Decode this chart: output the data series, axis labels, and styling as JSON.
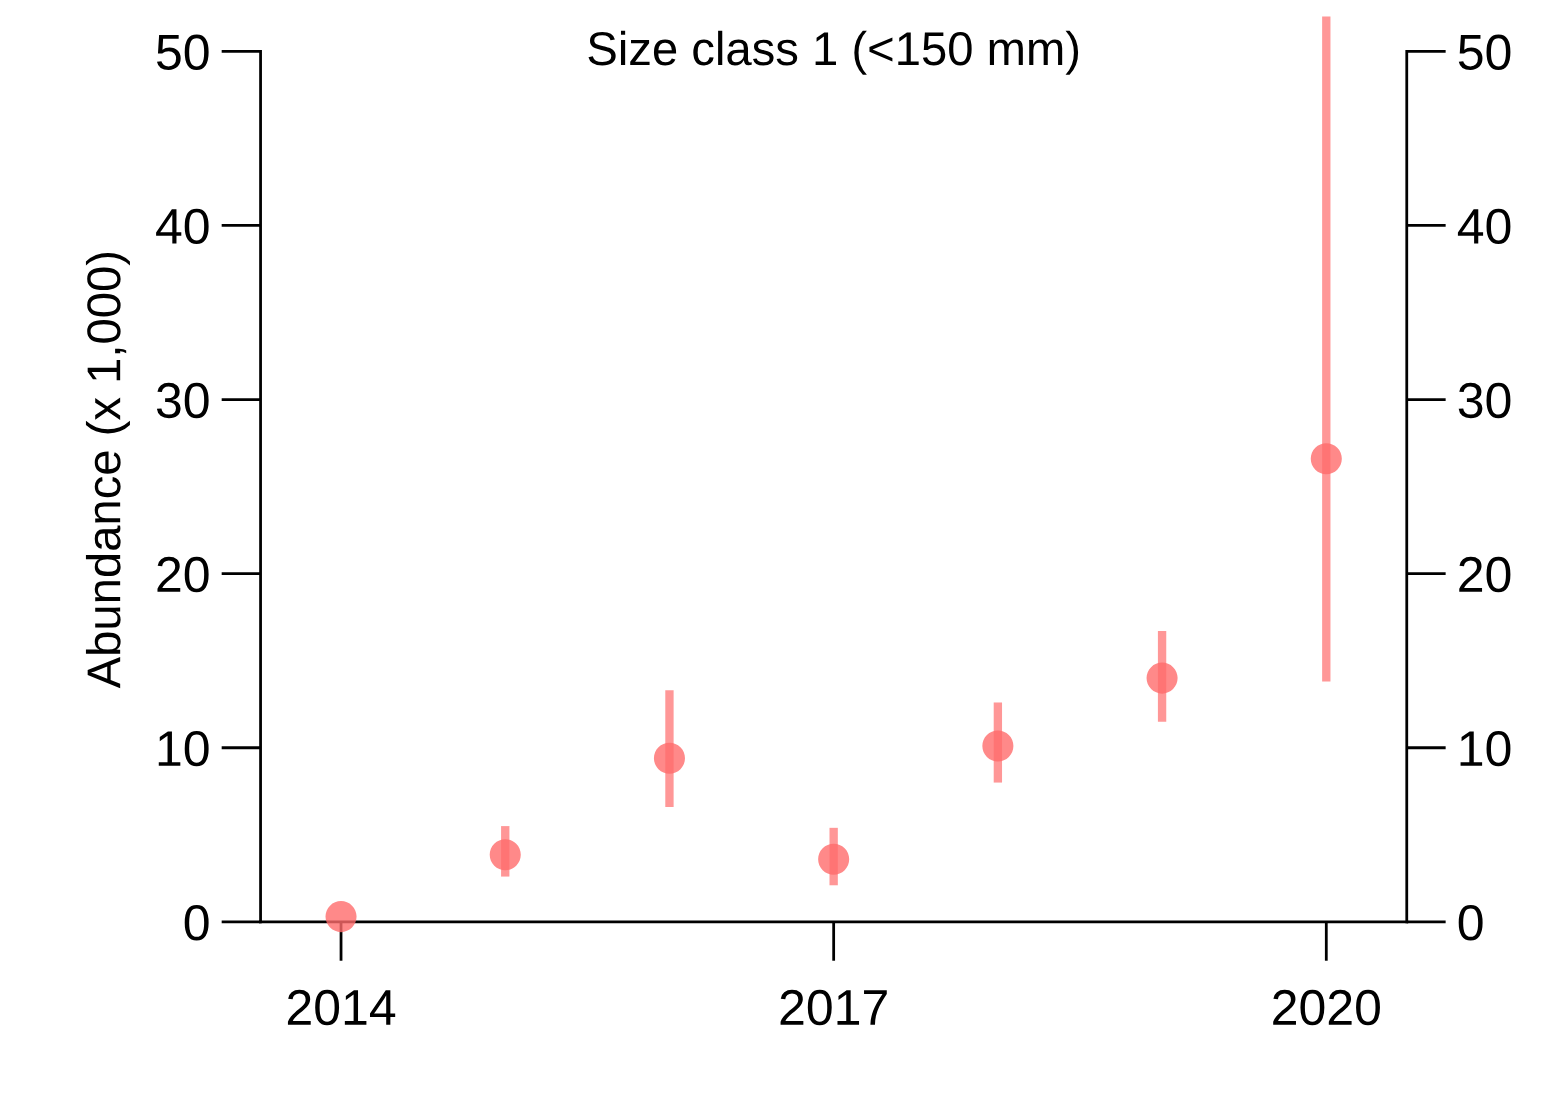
{
  "chart_data": {
    "type": "scatter",
    "title": "Size class 1 (<150 mm)",
    "ylabel": "Abundance (x 1,000)",
    "x": [
      2014,
      2015,
      2016,
      2017,
      2018,
      2019,
      2020
    ],
    "values": [
      0.3,
      3.85,
      9.4,
      3.6,
      10.1,
      14.0,
      26.6
    ],
    "errors": [
      null,
      [
        2.6,
        5.5
      ],
      [
        6.6,
        13.3
      ],
      [
        2.1,
        5.4
      ],
      [
        8.0,
        12.6
      ],
      [
        11.5,
        16.7
      ],
      [
        13.8,
        52.0
      ]
    ],
    "color": "#ff6b6b",
    "marker": "circle",
    "xlim": [
      2013.51,
      2020.49
    ],
    "xticks": [
      2014,
      2017,
      2020
    ],
    "ylim": [
      0,
      52
    ],
    "yticks": [
      0,
      10,
      20,
      30,
      40,
      50
    ],
    "y2lim": [
      0,
      52
    ],
    "y2ticks": [
      0,
      10,
      20,
      30,
      40,
      50
    ],
    "grid": false,
    "legend": false
  }
}
